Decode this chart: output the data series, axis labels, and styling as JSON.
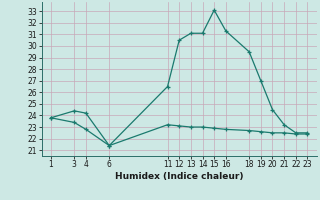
{
  "line1_x": [
    1,
    3,
    4,
    6,
    11,
    12,
    13,
    14,
    15,
    16,
    18,
    19,
    20,
    21,
    22,
    23
  ],
  "line1_y": [
    23.8,
    24.4,
    24.2,
    21.4,
    26.5,
    30.5,
    31.1,
    31.1,
    33.1,
    31.3,
    29.5,
    27.0,
    24.5,
    23.2,
    22.5,
    22.5
  ],
  "line2_x": [
    1,
    3,
    4,
    6,
    11,
    12,
    13,
    14,
    15,
    16,
    18,
    19,
    20,
    21,
    22,
    23
  ],
  "line2_y": [
    23.8,
    23.4,
    22.8,
    21.4,
    23.2,
    23.1,
    23.0,
    23.0,
    22.9,
    22.8,
    22.7,
    22.6,
    22.5,
    22.5,
    22.4,
    22.4
  ],
  "line_color": "#1a7a6e",
  "bg_color": "#cde8e4",
  "grid_color": "#b0d4cf",
  "xlabel": "Humidex (Indice chaleur)",
  "xticks": [
    1,
    3,
    4,
    6,
    11,
    12,
    13,
    14,
    15,
    16,
    18,
    19,
    20,
    21,
    22,
    23
  ],
  "yticks": [
    21,
    22,
    23,
    24,
    25,
    26,
    27,
    28,
    29,
    30,
    31,
    32,
    33
  ],
  "ylim": [
    20.5,
    33.8
  ],
  "xlim": [
    0.2,
    23.8
  ],
  "label_fontsize": 6.5,
  "tick_fontsize": 5.5
}
